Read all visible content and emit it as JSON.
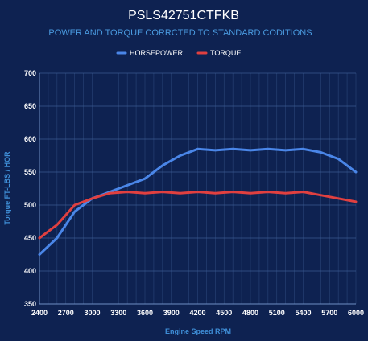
{
  "chart_data": {
    "type": "line",
    "title": "PSLS42751CTFKB",
    "subtitle": "POWER AND TORQUE CORRCTED TO STANDARD CODITIONS",
    "xlabel": "Engine Speed RPM",
    "ylabel": "Torque FT-LBS / HOR",
    "x_tick_labels": [
      "2400",
      "2700",
      "3000",
      "3300",
      "3600",
      "3900",
      "4200",
      "4500",
      "4800",
      "5100",
      "5400",
      "5700",
      "6000"
    ],
    "y_tick_labels": [
      "350",
      "400",
      "450",
      "500",
      "550",
      "600",
      "650",
      "700"
    ],
    "xlim": [
      2400,
      6000
    ],
    "ylim": [
      350,
      700
    ],
    "grid": true,
    "legend_position": "top",
    "x": [
      2400,
      2600,
      2800,
      3000,
      3200,
      3400,
      3600,
      3800,
      4000,
      4200,
      4400,
      4600,
      4800,
      5000,
      5200,
      5400,
      5600,
      5800,
      6000
    ],
    "series": [
      {
        "name": "HORSEPOWER",
        "color": "#4a86e8",
        "values": [
          425,
          450,
          490,
          510,
          520,
          530,
          540,
          560,
          575,
          585,
          583,
          585,
          583,
          585,
          583,
          585,
          580,
          570,
          550
        ]
      },
      {
        "name": "TORQUE",
        "color": "#e04040",
        "values": [
          450,
          470,
          500,
          510,
          518,
          520,
          518,
          520,
          518,
          520,
          518,
          520,
          518,
          520,
          518,
          520,
          515,
          510,
          505
        ]
      }
    ]
  }
}
